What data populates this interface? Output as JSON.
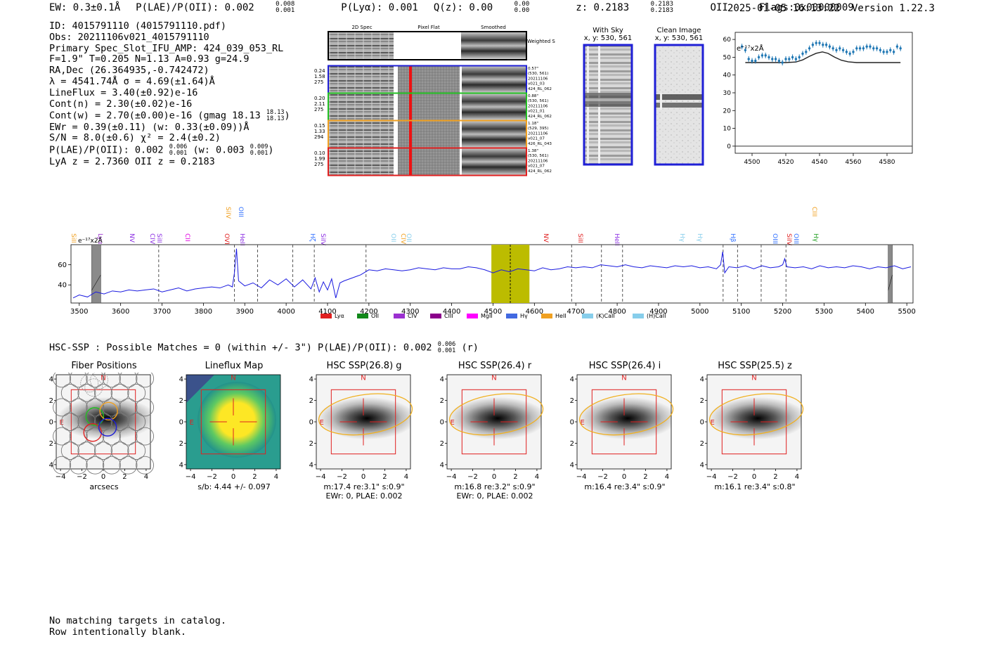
{
  "header": {
    "ew": "EW: 0.3±0.1Å",
    "plae": "P(LAE)/P(OII): 0.002",
    "plae_hi": "0.008",
    "plae_lo": "0.001",
    "plya": "P(Lyα): 0.001",
    "qz": "Q(z): 0.00",
    "qz_hi": "0.00",
    "qz_lo": "0.00",
    "z": "z: 0.2183",
    "z_hi": "0.2183",
    "z_lo": "0.2183",
    "z_line": "OII",
    "flags": "Flags:0x00000009",
    "timestamp": "2025-01-05 16:13:22",
    "version": "Version 1.22.3"
  },
  "summary": {
    "id": "ID: 4015791110 (4015791110.pdf)",
    "obs": "Obs: 20211106v021_4015791110",
    "primary": "Primary Spec_Slot_IFU_AMP: 424_039_053_RL",
    "fit": "F=1.9\"  T=0.205  N=1.13  A=0.93  g=24.9",
    "radec": "RA,Dec (26.364935,-0.742472)",
    "lambda": "λ = 4541.74Å   σ = 4.69(±1.64)Å",
    "lineflux": "LineFlux = 3.40(±0.92)e-16",
    "contn": "Cont(n) = 2.30(±0.02)e-16",
    "contw": "Cont(w) = 2.70(±0.00)e-16 (gmag 18.13",
    "contw_hi": "18.13",
    "contw_lo": "18.13",
    "contw_end": ")",
    "ewr": "EWr = 0.39(±0.11) (w: 0.33(±0.09))Å",
    "sn": "S/N = 8.0(±0.6)  χ² = 2.4(±0.2)",
    "plae": "P(LAE)/P(OII): 0.002",
    "plae_hi": "0.006",
    "plae_lo": "0.001",
    "plae_w": "(w: 0.003",
    "plae_w_hi": "0.009",
    "plae_w_lo": "0.001",
    "plae_w_end": ")",
    "lyaz": "LyA z = 2.7360  OII z = 0.2183"
  },
  "spec2d": {
    "col_2d": "2D Spec",
    "col_flat": "Pixel Flat",
    "col_smooth": "Smoothed",
    "weighted_sum": "Weighted Sum",
    "fibers": [
      {
        "left": [
          "0.24",
          "1.58",
          "275"
        ],
        "right": [
          "0.57\"",
          "(530, 561)",
          "20211106",
          "v021_03",
          "424_RL_062"
        ],
        "color": "#1f1fd6"
      },
      {
        "left": [
          "0.20",
          "2.11",
          "275"
        ],
        "right": [
          "0.88\"",
          "(530, 561)",
          "20211106",
          "v021_01",
          "424_RL_062"
        ],
        "color": "#22c022"
      },
      {
        "left": [
          "0.15",
          "1.33",
          "294"
        ],
        "right": [
          "1.18\"",
          "(529, 395)",
          "20211106",
          "v021_07",
          "426_RL_043"
        ],
        "color": "#f0a020"
      },
      {
        "left": [
          "0.10",
          "1.99",
          "275"
        ],
        "right": [
          "1.38\"",
          "(530, 561)",
          "20211106",
          "v021_07",
          "424_RL_062"
        ],
        "color": "#e02020"
      }
    ]
  },
  "sky_panels": [
    {
      "title": "With Sky",
      "coords": "x, y: 530, 561"
    },
    {
      "title": "Clean Image",
      "coords": "x, y: 530, 561"
    }
  ],
  "zoom_plot": {
    "unit_label": "e⁻¹⁷x2Å",
    "x_ticks": [
      "4500",
      "4520",
      "4540",
      "4560",
      "4580"
    ],
    "y_ticks": [
      "0",
      "10",
      "20",
      "30",
      "40",
      "50",
      "60"
    ],
    "xlim": [
      4490,
      4595
    ],
    "ylim": [
      -4,
      64
    ],
    "data_x": [
      4494,
      4496,
      4498,
      4500,
      4502,
      4504,
      4506,
      4508,
      4510,
      4512,
      4514,
      4516,
      4518,
      4520,
      4522,
      4524,
      4526,
      4528,
      4530,
      4532,
      4534,
      4536,
      4538,
      4540,
      4542,
      4544,
      4546,
      4548,
      4550,
      4552,
      4554,
      4556,
      4558,
      4560,
      4562,
      4564,
      4566,
      4568,
      4570,
      4572,
      4574,
      4576,
      4578,
      4580,
      4582,
      4584,
      4586,
      4588
    ],
    "data_y": [
      56,
      54,
      49,
      48,
      48,
      50,
      51,
      51,
      50,
      49,
      49,
      48,
      47,
      49,
      49,
      50,
      49,
      50,
      52,
      53,
      55,
      57,
      58,
      58,
      57,
      57,
      56,
      55,
      54,
      55,
      54,
      53,
      52,
      53,
      55,
      55,
      55,
      56,
      56,
      55,
      55,
      54,
      53,
      53,
      54,
      53,
      56,
      55
    ],
    "model_x": [
      4496,
      4520,
      4526,
      4530,
      4534,
      4538,
      4541.7,
      4545,
      4549,
      4553,
      4557,
      4562,
      4588
    ],
    "model_y": [
      47,
      47,
      47.3,
      48.5,
      50.5,
      52.2,
      53,
      52.2,
      50,
      48.3,
      47.4,
      47,
      47
    ]
  },
  "line_labels": [
    {
      "name": "SiII",
      "color": "#f0a020"
    },
    {
      "name": "Lyα",
      "color": "#9b30d0"
    },
    {
      "name": "NV",
      "color": "#8a2be2"
    },
    {
      "name": "CIV",
      "color": "#8a2be2"
    },
    {
      "name": "SiII",
      "color": "#8a2be2"
    },
    {
      "name": "CII",
      "color": "#e000e0"
    },
    {
      "name": "SiIV",
      "color": "#f0a020"
    },
    {
      "name": "OIII",
      "color": "#3070ff"
    },
    {
      "name": "OVI",
      "color": "#e02020"
    },
    {
      "name": "HeII",
      "color": "#8a2be2"
    },
    {
      "name": "Hζ",
      "color": "#3070ff"
    },
    {
      "name": "SiIV",
      "color": "#8a2be2"
    },
    {
      "name": "OII",
      "color": "#87ceeb"
    },
    {
      "name": "CIV",
      "color": "#f0a020"
    },
    {
      "name": "OII",
      "color": "#87ceeb"
    },
    {
      "name": "NV",
      "color": "#e02020"
    },
    {
      "name": "SiII",
      "color": "#e02020"
    },
    {
      "name": "HeII",
      "color": "#8a2be2"
    },
    {
      "name": "Hγ",
      "color": "#87ceeb"
    },
    {
      "name": "Hγ",
      "color": "#87ceeb"
    },
    {
      "name": "Hβ",
      "color": "#3070ff"
    },
    {
      "name": "OIII",
      "color": "#3070ff"
    },
    {
      "name": "SiIV",
      "color": "#e02020"
    },
    {
      "name": "OIII",
      "color": "#3070ff"
    },
    {
      "name": "CIII",
      "color": "#f0a020"
    },
    {
      "name": "Hγ",
      "color": "#22a022"
    }
  ],
  "chart_data": [
    {
      "type": "line",
      "title": "Full spectrum",
      "unit_label": "e⁻¹⁷x2Å",
      "xlim": [
        3480,
        5515
      ],
      "ylim": [
        22,
        80
      ],
      "x_ticks": [
        "3500",
        "3600",
        "3700",
        "3800",
        "3900",
        "4000",
        "4100",
        "4200",
        "4300",
        "4400",
        "4500",
        "4600",
        "4700",
        "4800",
        "4900",
        "5000",
        "5100",
        "5200",
        "5300",
        "5400",
        "5500"
      ],
      "y_ticks": [
        "40",
        "60"
      ],
      "highlight_range": [
        4496,
        4588
      ],
      "highlight_center": 4541.7,
      "masked_ranges": [
        [
          3530,
          3552
        ],
        [
          5455,
          5465
        ]
      ],
      "dashed_lines": [
        3692,
        3875,
        3931,
        4016,
        4068,
        4193,
        4690,
        4762,
        4813,
        5056,
        5091,
        5148,
        5208
      ],
      "x": [
        3485,
        3500,
        3520,
        3540,
        3560,
        3580,
        3600,
        3620,
        3640,
        3660,
        3680,
        3700,
        3720,
        3740,
        3760,
        3780,
        3800,
        3820,
        3840,
        3860,
        3870,
        3875,
        3880,
        3885,
        3900,
        3920,
        3940,
        3960,
        3980,
        4000,
        4020,
        4040,
        4060,
        4070,
        4080,
        4090,
        4100,
        4110,
        4120,
        4130,
        4140,
        4160,
        4180,
        4200,
        4220,
        4240,
        4260,
        4280,
        4300,
        4320,
        4340,
        4360,
        4380,
        4400,
        4420,
        4440,
        4460,
        4480,
        4500,
        4520,
        4540,
        4560,
        4580,
        4600,
        4620,
        4640,
        4660,
        4680,
        4700,
        4720,
        4740,
        4760,
        4780,
        4800,
        4820,
        4840,
        4860,
        4880,
        4900,
        4920,
        4940,
        4960,
        4980,
        5000,
        5020,
        5040,
        5050,
        5055,
        5060,
        5070,
        5090,
        5110,
        5130,
        5150,
        5170,
        5190,
        5200,
        5205,
        5210,
        5230,
        5250,
        5270,
        5290,
        5310,
        5330,
        5350,
        5370,
        5390,
        5410,
        5430,
        5450,
        5470,
        5490,
        5510
      ],
      "y": [
        27,
        30,
        28,
        33,
        31,
        34,
        33,
        35,
        34,
        35,
        36,
        33,
        35,
        37,
        34,
        36,
        37,
        38,
        37,
        40,
        38,
        52,
        76,
        44,
        39,
        42,
        37,
        45,
        40,
        46,
        38,
        45,
        36,
        47,
        33,
        43,
        35,
        46,
        27,
        42,
        44,
        47,
        50,
        55,
        54,
        56,
        55,
        54,
        55,
        57,
        56,
        55,
        57,
        56,
        56,
        58,
        57,
        55,
        52,
        55,
        53,
        56,
        55,
        54,
        57,
        55,
        56,
        58,
        57,
        58,
        57,
        60,
        59,
        58,
        60,
        58,
        57,
        59,
        58,
        57,
        59,
        58,
        59,
        57,
        58,
        56,
        60,
        73,
        52,
        58,
        57,
        59,
        56,
        59,
        57,
        58,
        60,
        66,
        58,
        57,
        58,
        56,
        59,
        57,
        58,
        57,
        59,
        58,
        56,
        58,
        57,
        59,
        56,
        58
      ]
    }
  ],
  "legend": [
    {
      "name": "Lyα",
      "color": "#e02020"
    },
    {
      "name": "OII",
      "color": "#11881a"
    },
    {
      "name": "CIV",
      "color": "#9b30d0"
    },
    {
      "name": "CIII",
      "color": "#8b008b"
    },
    {
      "name": "MgII",
      "color": "#ff00ff"
    },
    {
      "name": "Hγ",
      "color": "#4169e1"
    },
    {
      "name": "HeII",
      "color": "#f0a020"
    },
    {
      "name": "(K)CaII",
      "color": "#87ceeb"
    },
    {
      "name": "(H)CaII",
      "color": "#87ceeb"
    }
  ],
  "hsc": {
    "header": "HSC-SSP : Possible Matches = 0 (within +/- 3\")  P(LAE)/P(OII): 0.002",
    "header_hi": "0.006",
    "header_lo": "0.001",
    "header_band": "(r)",
    "axis_ticks": [
      "−4",
      "−2",
      "0",
      "2",
      "4"
    ],
    "north": "N",
    "east": "E",
    "cutouts": [
      {
        "title": "Fiber Positions",
        "caption": [
          "arcsecs"
        ]
      },
      {
        "title": "Lineflux Map",
        "caption": [
          "s/b: 4.44 +/- 0.097"
        ]
      },
      {
        "title": "HSC SSP(26.8) g",
        "caption": [
          "m:17.4  re:3.1\"  s:0.9\"",
          "EWr: 0, PLAE: 0.002"
        ]
      },
      {
        "title": "HSC SSP(26.4) r",
        "caption": [
          "m:16.8  re:3.2\"  s:0.9\"",
          "EWr: 0, PLAE: 0.002"
        ]
      },
      {
        "title": "HSC SSP(26.4) i",
        "caption": [
          "m:16.4  re:3.4\"  s:0.9\""
        ]
      },
      {
        "title": "HSC SSP(25.5) z",
        "caption": [
          "m:16.1  re:3.4\"  s:0.8\""
        ]
      }
    ]
  },
  "catalog_note": [
    "No matching targets in catalog.",
    "Row intentionally blank."
  ]
}
